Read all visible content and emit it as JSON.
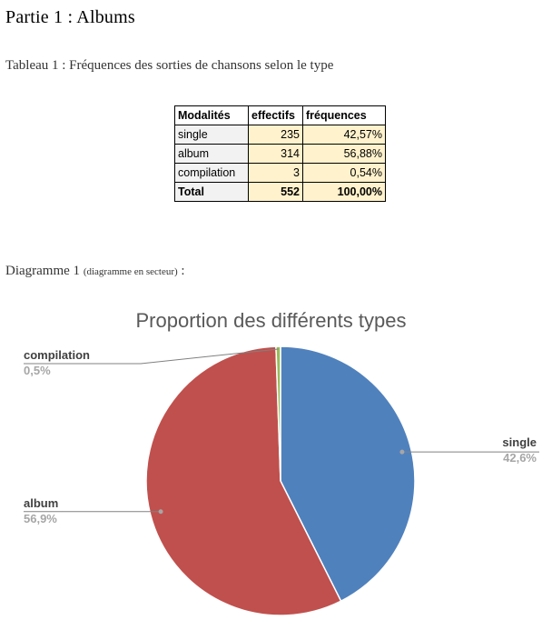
{
  "heading": "Partie 1 : Albums",
  "table_caption": "Tableau 1 : Fréquences des sorties de chansons selon le type",
  "table": {
    "headers": [
      "Modalités",
      "effectifs",
      "fréquences"
    ],
    "rows": [
      [
        "single",
        "235",
        "42,57%"
      ],
      [
        "album",
        "314",
        "56,88%"
      ],
      [
        "compilation",
        "3",
        "0,54%"
      ]
    ],
    "total": [
      "Total",
      "552",
      "100,00%"
    ]
  },
  "diagram_caption": {
    "main": "Diagramme 1",
    "small": "(diagramme en secteur)",
    "suffix": " :"
  },
  "chart_data": {
    "type": "pie",
    "title": "Proportion des différents types",
    "slices": [
      {
        "name": "single",
        "value": 235,
        "label": "42,6%",
        "color": "#4f81bd"
      },
      {
        "name": "album",
        "value": 314,
        "label": "56,9%",
        "color": "#c0504d"
      },
      {
        "name": "compilation",
        "value": 3,
        "label": "0,5%",
        "color": "#9bbb59"
      }
    ]
  }
}
